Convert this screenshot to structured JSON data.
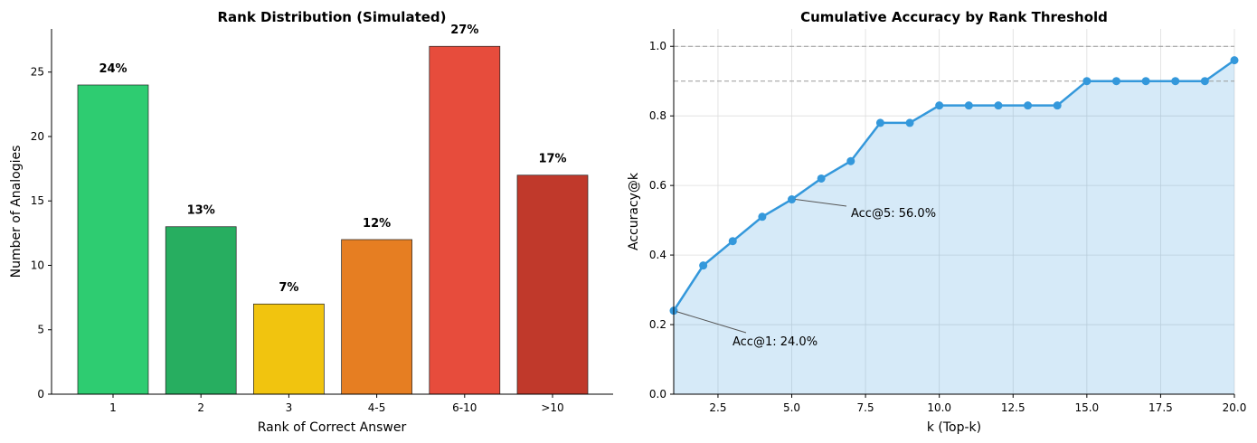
{
  "chart_data": [
    {
      "type": "bar",
      "title": "Rank Distribution (Simulated)",
      "xlabel": "Rank of Correct Answer",
      "ylabel": "Number of Analogies",
      "categories": [
        "1",
        "2",
        "3",
        "4-5",
        "6-10",
        ">10"
      ],
      "values": [
        24,
        13,
        7,
        12,
        27,
        17
      ],
      "data_labels": [
        "24%",
        "13%",
        "7%",
        "12%",
        "27%",
        "17%"
      ],
      "colors": [
        "#2ecc71",
        "#27ae60",
        "#f1c40f",
        "#e67e22",
        "#e74c3c",
        "#c0392b"
      ],
      "ylim": [
        0,
        28.35
      ],
      "yticks": [
        0,
        5,
        10,
        15,
        20,
        25
      ],
      "grid": false
    },
    {
      "type": "area",
      "title": "Cumulative Accuracy by Rank Threshold",
      "xlabel": "k (Top-k)",
      "ylabel": "Accuracy@k",
      "x": [
        1,
        2,
        3,
        4,
        5,
        6,
        7,
        8,
        9,
        10,
        11,
        12,
        13,
        14,
        15,
        16,
        17,
        18,
        19,
        20
      ],
      "y": [
        0.24,
        0.37,
        0.44,
        0.51,
        0.56,
        0.62,
        0.67,
        0.78,
        0.78,
        0.83,
        0.83,
        0.83,
        0.83,
        0.83,
        0.9,
        0.9,
        0.9,
        0.9,
        0.9,
        0.96
      ],
      "color": "#3498db",
      "xlim": [
        1,
        20
      ],
      "ylim": [
        0,
        1.05
      ],
      "xticks": [
        2.5,
        5.0,
        7.5,
        10.0,
        12.5,
        15.0,
        17.5,
        20.0
      ],
      "xtick_labels": [
        "2.5",
        "5.0",
        "7.5",
        "10.0",
        "12.5",
        "15.0",
        "17.5",
        "20.0"
      ],
      "yticks": [
        0,
        0.2,
        0.4,
        0.6,
        0.8,
        1.0
      ],
      "ytick_labels": [
        "0.0",
        "0.2",
        "0.4",
        "0.6",
        "0.8",
        "1.0"
      ],
      "hlines": [
        0.9,
        1.0
      ],
      "grid": true,
      "annotations": [
        {
          "text": "Acc@1: 24.0%",
          "x": 1,
          "y": 0.24
        },
        {
          "text": "Acc@5: 56.0%",
          "x": 5,
          "y": 0.56
        }
      ]
    }
  ]
}
